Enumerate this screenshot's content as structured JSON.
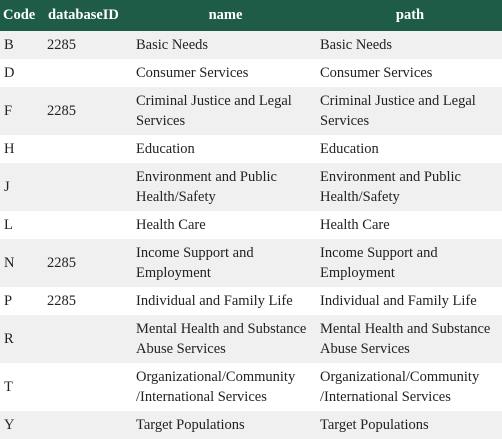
{
  "table": {
    "headers": {
      "code": "Code",
      "database_id": "databaseID",
      "name": "name",
      "path": "path"
    },
    "rows": [
      {
        "code": "B",
        "database_id": "2285",
        "name": "Basic Needs",
        "path": "Basic Needs"
      },
      {
        "code": "D",
        "database_id": "",
        "name": "Consumer Services",
        "path": "Consumer Services"
      },
      {
        "code": "F",
        "database_id": "2285",
        "name": "Criminal Justice and Legal Services",
        "path": "Criminal Justice and Legal Services"
      },
      {
        "code": "H",
        "database_id": "",
        "name": "Education",
        "path": "Education"
      },
      {
        "code": "J",
        "database_id": "",
        "name": "Environment and Public Health/Safety",
        "path": "Environment and Public Health/Safety"
      },
      {
        "code": "L",
        "database_id": "",
        "name": "Health Care",
        "path": "Health Care"
      },
      {
        "code": "N",
        "database_id": "2285",
        "name": "Income Support and Employment",
        "path": "Income Support and Employment"
      },
      {
        "code": "P",
        "database_id": "2285",
        "name": "Individual and Family Life",
        "path": "Individual and Family Life"
      },
      {
        "code": "R",
        "database_id": "",
        "name": "Mental Health and Substance Abuse Services",
        "path": "Mental Health and Substance Abuse Services"
      },
      {
        "code": "T",
        "database_id": "",
        "name": "Organizational/Community /International Services",
        "path": "Organizational/Community /International Services"
      },
      {
        "code": "Y",
        "database_id": "",
        "name": "Target Populations",
        "path": "Target Populations"
      }
    ]
  },
  "colors": {
    "header_bg": "#1f5c48",
    "header_text": "#ffffff",
    "row_alt_bg": "#f0f0f0",
    "row_bg": "#ffffff",
    "text": "#222222"
  }
}
